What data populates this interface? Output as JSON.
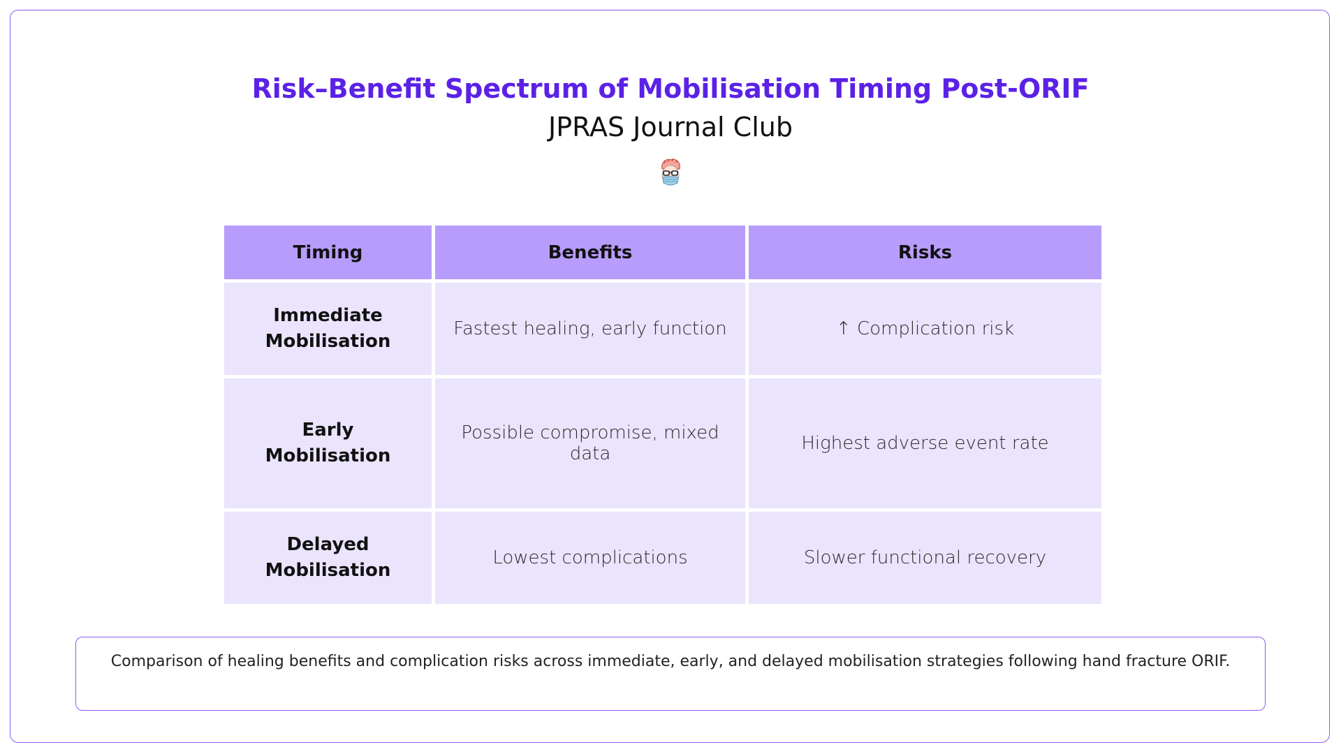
{
  "slide": {
    "title": "Risk–Benefit Spectrum of Mobilisation Timing Post-ORIF",
    "subtitle": "JPRAS Journal Club",
    "avatar_icon": "doctor-avatar-icon"
  },
  "table": {
    "headers": [
      "Timing",
      "Benefits",
      "Risks"
    ],
    "rows": [
      {
        "timing_line1": "Immediate",
        "timing_line2": "Mobilisation",
        "benefits": "Fastest healing, early function",
        "risks": "↑ Complication risk"
      },
      {
        "timing_line1": "Early",
        "timing_line2": "Mobilisation",
        "benefits": "Possible compromise, mixed data",
        "risks": "Highest adverse event rate"
      },
      {
        "timing_line1": "Delayed",
        "timing_line2": "Mobilisation",
        "benefits": "Lowest complications",
        "risks": "Slower functional recovery"
      }
    ]
  },
  "caption": "Comparison of healing benefits and complication risks across immediate, early, and delayed mobilisation strategies following hand fracture ORIF.",
  "colors": {
    "accent": "#5b21e6",
    "border": "#8b5cf6",
    "header_fill": "#b89cfb",
    "cell_fill": "#ebe4fd"
  }
}
